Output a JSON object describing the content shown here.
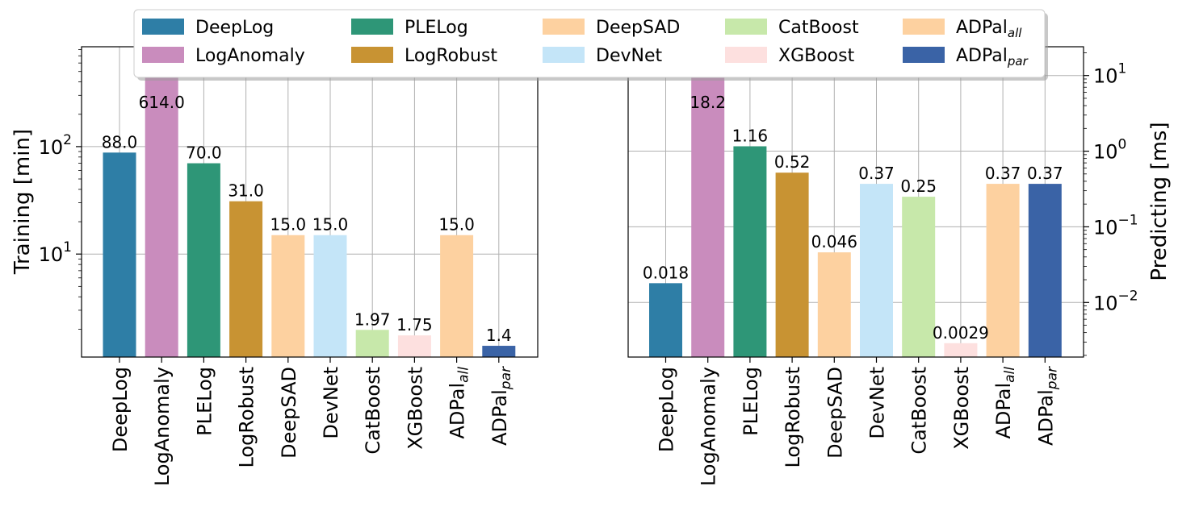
{
  "legend": [
    {
      "label": "DeepLog",
      "sub": "",
      "color": "#2e7ea6"
    },
    {
      "label": "LogAnomaly",
      "sub": "",
      "color": "#c98cbd"
    },
    {
      "label": "PLELog",
      "sub": "",
      "color": "#2e9677"
    },
    {
      "label": "LogRobust",
      "sub": "",
      "color": "#c89333"
    },
    {
      "label": "DeepSAD",
      "sub": "",
      "color": "#fdd1a0"
    },
    {
      "label": "DevNet",
      "sub": "",
      "color": "#c4e5f8"
    },
    {
      "label": "CatBoost",
      "sub": "",
      "color": "#c7e8aa"
    },
    {
      "label": "XGBoost",
      "sub": "",
      "color": "#fde0df"
    },
    {
      "label": "ADPal",
      "sub": "all",
      "color": "#fdd1a0"
    },
    {
      "label": "ADPal",
      "sub": "par",
      "color": "#3a63a6"
    }
  ],
  "chart_data": [
    {
      "type": "bar",
      "ylabel": "Training [min]",
      "yscale": "log",
      "ylim": [
        1.1,
        850
      ],
      "yticks": [
        {
          "value": 10,
          "base": "10",
          "exp": "1"
        },
        {
          "value": 100,
          "base": "10",
          "exp": "2"
        }
      ],
      "grid": true,
      "categories": [
        {
          "label": "DeepLog",
          "sub": ""
        },
        {
          "label": "LogAnomaly",
          "sub": ""
        },
        {
          "label": "PLELog",
          "sub": ""
        },
        {
          "label": "LogRobust",
          "sub": ""
        },
        {
          "label": "DeepSAD",
          "sub": ""
        },
        {
          "label": "DevNet",
          "sub": ""
        },
        {
          "label": "CatBoost",
          "sub": ""
        },
        {
          "label": "XGBoost",
          "sub": ""
        },
        {
          "label": "ADPal",
          "sub": "all"
        },
        {
          "label": "ADPal",
          "sub": "par"
        }
      ],
      "values": [
        88.0,
        614.0,
        70.0,
        31.0,
        15.0,
        15.0,
        1.97,
        1.75,
        15.0,
        1.4
      ],
      "data_labels": [
        "88.0",
        "614.0",
        "70.0",
        "31.0",
        "15.0",
        "15.0",
        "1.97",
        "1.75",
        "15.0",
        "1.4"
      ],
      "colors": [
        "#2e7ea6",
        "#c98cbd",
        "#2e9677",
        "#c89333",
        "#fdd1a0",
        "#c4e5f8",
        "#c7e8aa",
        "#fde0df",
        "#fdd1a0",
        "#3a63a6"
      ]
    },
    {
      "type": "bar",
      "ylabel": "Predicting [ms]",
      "yscale": "log",
      "ylim": [
        0.0019,
        24
      ],
      "yaxis_side": "right",
      "yticks": [
        {
          "value": 0.01,
          "base": "10",
          "exp": "−2"
        },
        {
          "value": 0.1,
          "base": "10",
          "exp": "−1"
        },
        {
          "value": 1,
          "base": "10",
          "exp": "0"
        },
        {
          "value": 10,
          "base": "10",
          "exp": "1"
        }
      ],
      "grid": true,
      "categories": [
        {
          "label": "DeepLog",
          "sub": ""
        },
        {
          "label": "LogAnomaly",
          "sub": ""
        },
        {
          "label": "PLELog",
          "sub": ""
        },
        {
          "label": "LogRobust",
          "sub": ""
        },
        {
          "label": "DeepSAD",
          "sub": ""
        },
        {
          "label": "DevNet",
          "sub": ""
        },
        {
          "label": "CatBoost",
          "sub": ""
        },
        {
          "label": "XGBoost",
          "sub": ""
        },
        {
          "label": "ADPal",
          "sub": "all"
        },
        {
          "label": "ADPal",
          "sub": "par"
        }
      ],
      "values": [
        0.018,
        18.2,
        1.16,
        0.52,
        0.046,
        0.37,
        0.25,
        0.0029,
        0.37,
        0.37
      ],
      "data_labels": [
        "0.018",
        "18.2",
        "1.16",
        "0.52",
        "0.046",
        "0.37",
        "0.25",
        "0.0029",
        "0.37",
        "0.37"
      ],
      "colors": [
        "#2e7ea6",
        "#c98cbd",
        "#2e9677",
        "#c89333",
        "#fdd1a0",
        "#c4e5f8",
        "#c7e8aa",
        "#fde0df",
        "#fdd1a0",
        "#3a63a6"
      ]
    }
  ]
}
